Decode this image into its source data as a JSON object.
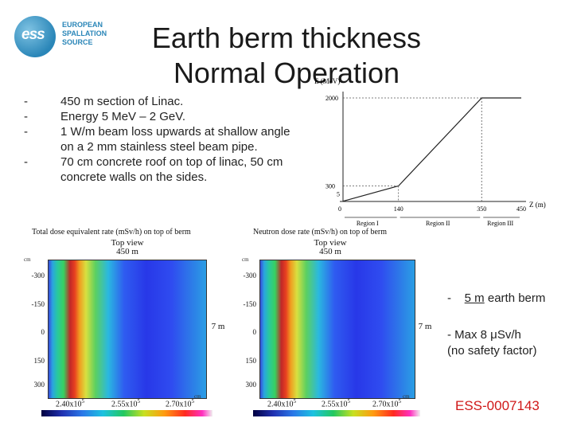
{
  "logo": {
    "mark": "ess",
    "lines": [
      "EUROPEAN",
      "SPALLATION",
      "SOURCE"
    ]
  },
  "title": {
    "line1": "Earth berm thickness",
    "line2": "Normal Operation"
  },
  "bullets": [
    "450 m section of Linac.",
    "Energy 5 MeV – 2 GeV.",
    "1 W/m beam loss upwards at shallow angle on a 2 mm stainless steel beam pipe.",
    "70 cm concrete roof on top of linac, 50 cm concrete walls on the sides."
  ],
  "chart_data": {
    "type": "line",
    "ylabel": "E (MeV)",
    "xlabel": "Z (m)",
    "x_ticks": [
      "0",
      "140",
      "350",
      "450"
    ],
    "y_ticks": [
      "5",
      "300",
      "2000"
    ],
    "regions": [
      "Region I",
      "Region II",
      "Region III"
    ],
    "series": [
      {
        "x": [
          0,
          140,
          350,
          450
        ],
        "y": [
          5,
          300,
          2000,
          2000
        ]
      }
    ],
    "xlim": [
      0,
      450
    ],
    "ylim": [
      0,
      2000
    ]
  },
  "maps": [
    {
      "title": "Total dose equivalent rate (mSv/h) on top of berm",
      "view": "Top view",
      "length": "450 m",
      "width": "7 m",
      "unit": "cm",
      "y_ticks": [
        "-300",
        "-150",
        "0",
        "150",
        "300"
      ],
      "x_labels": [
        "2.40x10",
        "2.55x10",
        "2.70x10"
      ],
      "exp": "5"
    },
    {
      "title": "Neutron dose rate (mSv/h) on top of berm",
      "view": "Top view",
      "length": "450 m",
      "width": "7 m",
      "unit": "cm",
      "y_ticks": [
        "-300",
        "-150",
        "0",
        "150",
        "300"
      ],
      "x_labels": [
        "2.40x10",
        "2.55x10",
        "2.70x10"
      ],
      "exp": "5"
    }
  ],
  "notes": {
    "berm_dash": "-",
    "berm_value": "5 m",
    "berm_text": " earth berm",
    "max_line": "-    Max 8 μSv/h",
    "safety": "(no safety factor)"
  },
  "doc_id": "ESS-0007143",
  "colors": {
    "ess_blue": "#2a86b8",
    "doc_id_red": "#d01818"
  }
}
